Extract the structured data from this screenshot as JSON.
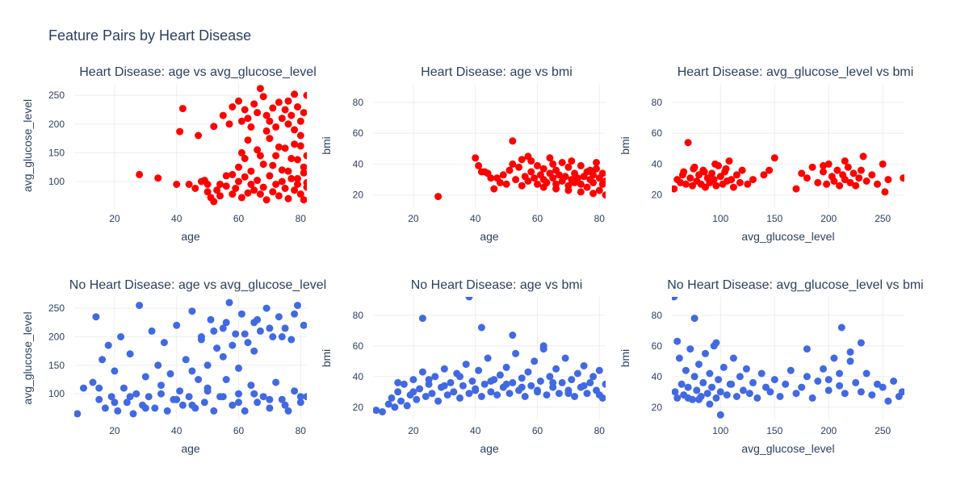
{
  "chart_data": {
    "title": "Feature Pairs by Heart Disease",
    "grid": true,
    "legend": "none",
    "colors": {
      "heart_disease": "#ff0000",
      "no_heart_disease": "#4169e1"
    },
    "panels": [
      {
        "type": "scatter",
        "title": "Heart Disease: age vs avg_glucose_level",
        "xlabel": "age",
        "ylabel": "avg_glucose_level",
        "xlim": [
          7,
          82
        ],
        "ylim": [
          55,
          270
        ],
        "xticks": [
          20,
          40,
          60,
          80
        ],
        "yticks": [
          100,
          150,
          200,
          250
        ],
        "group": "heart_disease",
        "x": [
          28,
          34,
          40,
          41,
          42,
          44,
          46,
          47,
          48,
          49,
          50,
          51,
          52,
          53,
          54,
          55,
          56,
          57,
          58,
          58,
          59,
          60,
          60,
          61,
          61,
          62,
          62,
          63,
          63,
          64,
          64,
          65,
          65,
          66,
          66,
          67,
          67,
          68,
          68,
          69,
          69,
          70,
          70,
          71,
          71,
          72,
          72,
          73,
          73,
          74,
          74,
          75,
          75,
          76,
          76,
          77,
          77,
          78,
          78,
          79,
          79,
          80,
          80,
          81,
          81,
          82,
          82,
          80,
          78,
          76,
          74,
          72,
          70,
          68,
          66,
          64,
          62,
          60,
          58,
          56,
          54,
          52,
          50,
          63,
          67,
          71,
          75,
          79,
          81,
          82,
          82,
          81,
          80,
          79,
          78,
          77,
          76,
          69,
          73,
          61
        ],
        "y": [
          112,
          106,
          95,
          187,
          227,
          95,
          88,
          180,
          100,
          102,
          95,
          72,
          196,
          85,
          95,
          215,
          110,
          200,
          78,
          230,
          88,
          240,
          100,
          205,
          72,
          225,
          108,
          210,
          80,
          195,
          95,
          235,
          85,
          220,
          102,
          262,
          78,
          248,
          90,
          215,
          68,
          205,
          110,
          228,
          82,
          195,
          95,
          238,
          75,
          210,
          100,
          225,
          88,
          200,
          70,
          215,
          105,
          190,
          85,
          230,
          95,
          205,
          78,
          220,
          68,
          250,
          90,
          180,
          165,
          240,
          120,
          145,
          175,
          130,
          155,
          118,
          140,
          125,
          112,
          92,
          75,
          65,
          82,
          172,
          145,
          128,
          158,
          138,
          115,
          98,
          145,
          125,
          162,
          105,
          252,
          140,
          118,
          188,
          160,
          150
        ]
      },
      {
        "type": "scatter",
        "title": "Heart Disease: age vs bmi",
        "xlabel": "age",
        "ylabel": "bmi",
        "xlim": [
          7,
          82
        ],
        "ylim": [
          12,
          92
        ],
        "xticks": [
          20,
          40,
          60,
          80
        ],
        "yticks": [
          20,
          40,
          60,
          80
        ],
        "group": "heart_disease",
        "x": [
          28,
          40,
          41,
          42,
          43,
          44,
          45,
          46,
          47,
          48,
          49,
          50,
          51,
          52,
          53,
          54,
          55,
          56,
          57,
          57,
          58,
          59,
          60,
          60,
          61,
          62,
          62,
          63,
          64,
          64,
          65,
          66,
          66,
          67,
          68,
          68,
          69,
          70,
          70,
          71,
          72,
          72,
          73,
          74,
          74,
          75,
          76,
          76,
          77,
          78,
          78,
          79,
          80,
          80,
          81,
          81,
          82,
          82,
          58,
          52,
          62,
          66,
          70,
          74,
          78,
          79,
          77,
          71,
          65,
          55
        ],
        "y": [
          19,
          44,
          39,
          35,
          35,
          34,
          31,
          24,
          31,
          28,
          33,
          27,
          36,
          55,
          30,
          38,
          26,
          32,
          29,
          45,
          35,
          31,
          27,
          39,
          33,
          30,
          37,
          28,
          34,
          44,
          31,
          27,
          36,
          33,
          29,
          41,
          32,
          26,
          38,
          30,
          34,
          28,
          31,
          27,
          39,
          32,
          25,
          35,
          30,
          28,
          33,
          37,
          23,
          31,
          27,
          34,
          20,
          29,
          42,
          40,
          25,
          24,
          23,
          22,
          21,
          41,
          36,
          42,
          40,
          43
        ]
      },
      {
        "type": "scatter",
        "title": "Heart Disease: avg_glucose_level vs bmi",
        "xlabel": "avg_glucose_level",
        "ylabel": "bmi",
        "xlim": [
          55,
          270
        ],
        "ylim": [
          12,
          92
        ],
        "xticks": [
          100,
          150,
          200,
          250
        ],
        "yticks": [
          20,
          40,
          60,
          80
        ],
        "group": "heart_disease",
        "x": [
          57,
          60,
          63,
          66,
          68,
          70,
          72,
          74,
          76,
          78,
          80,
          82,
          84,
          86,
          88,
          90,
          92,
          94,
          96,
          98,
          100,
          102,
          104,
          106,
          108,
          110,
          112,
          115,
          118,
          120,
          125,
          130,
          140,
          145,
          150,
          170,
          175,
          180,
          185,
          190,
          195,
          198,
          200,
          203,
          205,
          208,
          210,
          213,
          215,
          218,
          220,
          223,
          225,
          228,
          230,
          235,
          240,
          245,
          250,
          252,
          255,
          269,
          65,
          75,
          85,
          95,
          105,
          195,
          215,
          232
        ],
        "y": [
          24,
          30,
          28,
          35,
          27,
          54,
          31,
          26,
          38,
          29,
          33,
          27,
          36,
          25,
          31,
          28,
          34,
          30,
          26,
          39,
          32,
          27,
          35,
          29,
          42,
          30,
          25,
          33,
          28,
          36,
          27,
          30,
          33,
          36,
          44,
          24,
          34,
          31,
          38,
          28,
          35,
          27,
          40,
          32,
          29,
          36,
          26,
          33,
          30,
          38,
          28,
          34,
          26,
          31,
          36,
          29,
          33,
          27,
          40,
          22,
          30,
          31,
          33,
          37,
          35,
          40,
          37,
          39,
          42,
          45
        ]
      },
      {
        "type": "scatter",
        "title": "No Heart Disease: age vs avg_glucose_level",
        "xlabel": "age",
        "ylabel": "avg_glucose_level",
        "xlim": [
          7,
          82
        ],
        "ylim": [
          55,
          270
        ],
        "xticks": [
          20,
          40,
          60,
          80
        ],
        "yticks": [
          100,
          150,
          200,
          250
        ],
        "group": "no_heart_disease",
        "x": [
          8,
          10,
          13,
          14,
          15,
          16,
          17,
          18,
          19,
          20,
          21,
          22,
          23,
          24,
          25,
          26,
          27,
          28,
          29,
          30,
          31,
          32,
          33,
          34,
          35,
          36,
          37,
          38,
          39,
          40,
          41,
          42,
          43,
          44,
          45,
          46,
          47,
          48,
          49,
          50,
          51,
          52,
          53,
          54,
          55,
          56,
          57,
          58,
          59,
          60,
          61,
          62,
          63,
          64,
          65,
          66,
          67,
          68,
          69,
          70,
          71,
          72,
          73,
          74,
          75,
          76,
          77,
          78,
          79,
          80,
          81,
          82,
          15,
          20,
          25,
          30,
          35,
          40,
          45,
          50,
          55,
          60,
          65,
          70,
          75,
          80,
          48,
          52,
          56,
          58,
          62,
          66,
          70,
          74,
          78,
          45,
          50,
          55,
          60,
          65
        ],
        "y": [
          65,
          110,
          120,
          235,
          90,
          160,
          75,
          185,
          95,
          140,
          70,
          200,
          110,
          85,
          170,
          65,
          100,
          255,
          80,
          130,
          95,
          210,
          75,
          150,
          115,
          190,
          70,
          135,
          90,
          220,
          105,
          80,
          160,
          95,
          245,
          75,
          125,
          200,
          85,
          110,
          230,
          70,
          180,
          95,
          215,
          125,
          260,
          80,
          205,
          100,
          240,
          70,
          190,
          115,
          225,
          85,
          210,
          95,
          250,
          75,
          200,
          120,
          235,
          90,
          215,
          70,
          195,
          105,
          255,
          85,
          220,
          95,
          110,
          85,
          95,
          75,
          100,
          90,
          80,
          105,
          95,
          85,
          100,
          90,
          80,
          95,
          195,
          210,
          225,
          185,
          205,
          230,
          215,
          200,
          240,
          140,
          150,
          165,
          145,
          175
        ]
      },
      {
        "type": "scatter",
        "title": "No Heart Disease: age vs bmi",
        "xlabel": "age",
        "ylabel": "bmi",
        "xlim": [
          7,
          82
        ],
        "ylim": [
          12,
          92
        ],
        "xticks": [
          20,
          40,
          60,
          80
        ],
        "yticks": [
          20,
          40,
          60,
          80
        ],
        "group": "no_heart_disease",
        "x": [
          8,
          10,
          12,
          13,
          14,
          15,
          16,
          17,
          18,
          19,
          20,
          21,
          22,
          23,
          24,
          25,
          26,
          27,
          28,
          29,
          30,
          31,
          32,
          33,
          34,
          35,
          36,
          37,
          38,
          39,
          40,
          41,
          42,
          43,
          44,
          45,
          46,
          47,
          48,
          49,
          50,
          51,
          52,
          53,
          54,
          55,
          56,
          57,
          58,
          59,
          60,
          61,
          62,
          63,
          64,
          65,
          66,
          67,
          68,
          69,
          70,
          71,
          72,
          73,
          74,
          75,
          76,
          77,
          78,
          79,
          80,
          81,
          82,
          17,
          23,
          38,
          42,
          52,
          62,
          15,
          20,
          25,
          30,
          35,
          40,
          45,
          50,
          55,
          60,
          65,
          70,
          75,
          80
        ],
        "y": [
          18,
          17,
          22,
          26,
          20,
          30,
          24,
          35,
          21,
          28,
          38,
          25,
          32,
          43,
          27,
          35,
          29,
          40,
          24,
          33,
          45,
          28,
          36,
          30,
          42,
          26,
          34,
          48,
          29,
          37,
          31,
          44,
          27,
          35,
          52,
          30,
          38,
          28,
          41,
          33,
          46,
          29,
          36,
          55,
          31,
          39,
          27,
          43,
          34,
          50,
          30,
          37,
          60,
          28,
          40,
          33,
          45,
          29,
          36,
          52,
          31,
          38,
          27,
          42,
          33,
          47,
          29,
          36,
          40,
          31,
          44,
          26,
          35,
          96,
          78,
          92,
          72,
          67,
          58,
          36,
          30,
          38,
          34,
          40,
          32,
          37,
          35,
          33,
          31,
          36,
          29,
          34,
          28
        ]
      },
      {
        "type": "scatter",
        "title": "No Heart Disease: avg_glucose_level vs bmi",
        "xlabel": "avg_glucose_level",
        "ylabel": "bmi",
        "xlim": [
          55,
          270
        ],
        "ylim": [
          12,
          92
        ],
        "xticks": [
          100,
          150,
          200,
          250
        ],
        "yticks": [
          20,
          40,
          60,
          80
        ],
        "group": "no_heart_disease",
        "x": [
          57,
          58,
          60,
          62,
          64,
          66,
          68,
          70,
          72,
          74,
          76,
          78,
          80,
          82,
          84,
          86,
          88,
          90,
          92,
          94,
          96,
          98,
          100,
          103,
          106,
          109,
          112,
          115,
          118,
          121,
          124,
          127,
          130,
          134,
          138,
          142,
          146,
          150,
          155,
          160,
          165,
          170,
          175,
          180,
          185,
          190,
          195,
          200,
          205,
          210,
          215,
          220,
          225,
          230,
          235,
          240,
          245,
          250,
          255,
          260,
          265,
          268,
          70,
          76,
          60,
          212,
          230,
          180,
          96,
          110,
          70,
          80,
          90,
          100,
          200,
          210,
          220
        ],
        "y": [
          92,
          30,
          26,
          52,
          35,
          28,
          44,
          33,
          58,
          25,
          40,
          31,
          48,
          27,
          36,
          55,
          29,
          42,
          33,
          60,
          26,
          38,
          30,
          46,
          28,
          35,
          52,
          27,
          40,
          31,
          45,
          29,
          36,
          26,
          42,
          33,
          30,
          38,
          27,
          35,
          44,
          29,
          33,
          40,
          26,
          37,
          45,
          31,
          52,
          34,
          29,
          56,
          36,
          30,
          42,
          28,
          35,
          33,
          24,
          37,
          27,
          30,
          96,
          78,
          63,
          72,
          62,
          58,
          62,
          35,
          26,
          25,
          22,
          15,
          38,
          42,
          50
        ]
      }
    ]
  }
}
